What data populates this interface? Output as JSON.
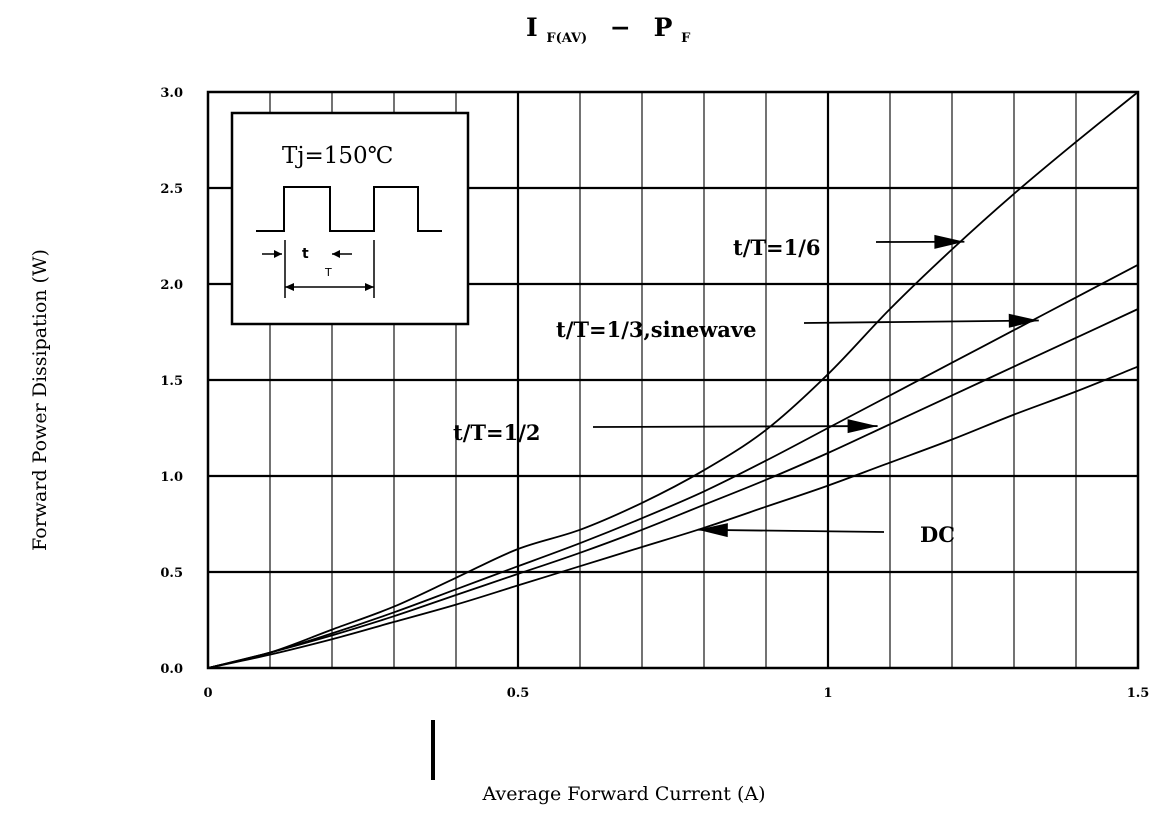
{
  "chart_data": {
    "type": "line",
    "title": {
      "main_a": "I",
      "sub_a": "F(AV)",
      "dash": "−",
      "main_b": "P",
      "sub_b": "F"
    },
    "xlabel": "Average Forward Current (A)",
    "ylabel": "Forward Power Dissipation (W)",
    "xlim": [
      0,
      1.5
    ],
    "ylim": [
      0,
      3.0
    ],
    "x_ticks": [
      {
        "value": 0,
        "label": "0"
      },
      {
        "value": 0.5,
        "label": "0.5"
      },
      {
        "value": 1.0,
        "label": "1"
      },
      {
        "value": 1.5,
        "label": "1.5"
      }
    ],
    "y_ticks": [
      {
        "value": 0.0,
        "label": "0.0"
      },
      {
        "value": 0.5,
        "label": "0.5"
      },
      {
        "value": 1.0,
        "label": "1.0"
      },
      {
        "value": 1.5,
        "label": "1.5"
      },
      {
        "value": 2.0,
        "label": "2.0"
      },
      {
        "value": 2.5,
        "label": "2.5"
      },
      {
        "value": 3.0,
        "label": "3.0"
      }
    ],
    "grid": true,
    "series": [
      {
        "name": "t/T=1/6",
        "x": [
          0,
          0.1,
          0.2,
          0.3,
          0.4,
          0.5,
          0.6,
          0.7,
          0.8,
          0.9,
          1.0,
          1.1,
          1.2,
          1.3,
          1.4,
          1.5
        ],
        "y": [
          0,
          0.08,
          0.2,
          0.32,
          0.47,
          0.62,
          0.72,
          0.86,
          1.03,
          1.24,
          1.53,
          1.87,
          2.18,
          2.47,
          2.74,
          3.0
        ]
      },
      {
        "name": "t/T=1/3,sinewave",
        "x": [
          0,
          0.1,
          0.2,
          0.3,
          0.4,
          0.5,
          0.6,
          0.7,
          0.8,
          0.9,
          1.0,
          1.1,
          1.2,
          1.3,
          1.4,
          1.5
        ],
        "y": [
          0,
          0.08,
          0.18,
          0.29,
          0.41,
          0.53,
          0.65,
          0.78,
          0.92,
          1.08,
          1.25,
          1.42,
          1.59,
          1.76,
          1.93,
          2.1
        ]
      },
      {
        "name": "t/T=1/2",
        "x": [
          0,
          0.1,
          0.2,
          0.3,
          0.4,
          0.5,
          0.6,
          0.7,
          0.8,
          0.9,
          1.0,
          1.1,
          1.2,
          1.3,
          1.4,
          1.5
        ],
        "y": [
          0,
          0.08,
          0.17,
          0.27,
          0.38,
          0.49,
          0.6,
          0.72,
          0.85,
          0.98,
          1.12,
          1.27,
          1.42,
          1.57,
          1.72,
          1.87
        ]
      },
      {
        "name": "DC",
        "x": [
          0,
          0.1,
          0.2,
          0.3,
          0.4,
          0.5,
          0.6,
          0.7,
          0.8,
          0.9,
          1.0,
          1.1,
          1.2,
          1.3,
          1.4,
          1.5
        ],
        "y": [
          0,
          0.07,
          0.15,
          0.24,
          0.33,
          0.43,
          0.53,
          0.63,
          0.73,
          0.84,
          0.95,
          1.07,
          1.19,
          1.32,
          1.44,
          1.57
        ]
      }
    ],
    "annotations": [
      {
        "text": "t/T=1/6",
        "arrow_to": [
          1.22,
          2.22
        ]
      },
      {
        "text": "t/T=1/3,sinewave",
        "arrow_to": [
          1.34,
          1.81
        ]
      },
      {
        "text": "t/T=1/2",
        "arrow_to": [
          1.08,
          1.26
        ]
      },
      {
        "text": "DC",
        "arrow_to": [
          0.79,
          0.72
        ]
      }
    ],
    "inset": {
      "label": "Tj=150℃",
      "pulse_width_label": "t",
      "period_label": "T"
    }
  }
}
